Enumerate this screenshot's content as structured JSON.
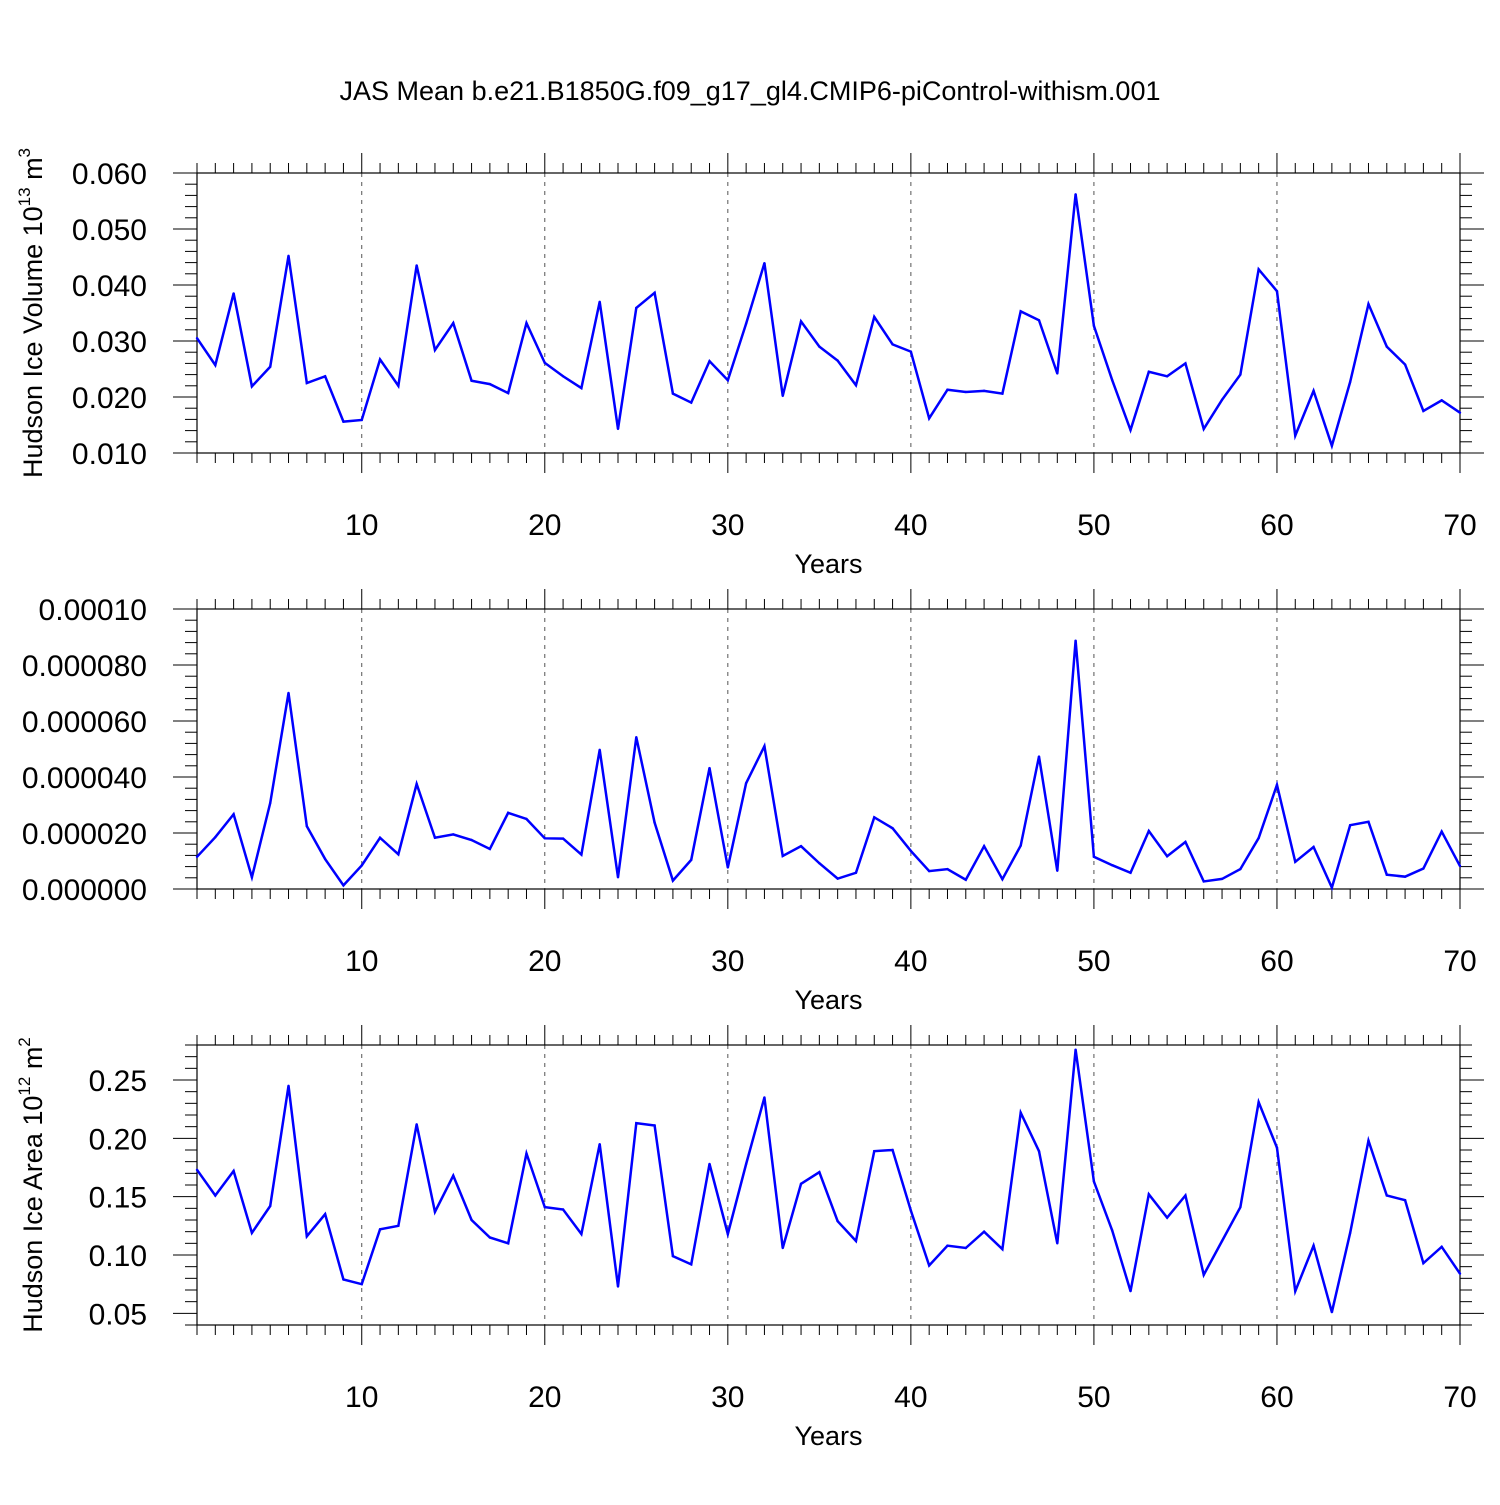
{
  "figure": {
    "title": "JAS Mean b.e21.B1850G.f09_g17_gl4.CMIP6-piControl-withism.001"
  },
  "chart_data": [
    {
      "type": "line",
      "xlabel": "Years",
      "ylabel": "Hudson Ice Volume 10",
      "ylabel_exponent": "13",
      "ylabel_unit": " m",
      "ylabel_unit_exponent": "3",
      "xlim": [
        1,
        70
      ],
      "ylim": [
        0.01,
        0.06
      ],
      "xticks": [
        10,
        20,
        30,
        40,
        50,
        60,
        70
      ],
      "xtick_labels": [
        "10",
        "20",
        "30",
        "40",
        "50",
        "60",
        "70"
      ],
      "yticks": [
        0.01,
        0.02,
        0.03,
        0.04,
        0.05,
        0.06
      ],
      "ytick_labels": [
        "0.010",
        "0.020",
        "0.030",
        "0.040",
        "0.050",
        "0.060"
      ],
      "grid": "vertical dashed at major x ticks",
      "line_color": "#0000ff",
      "x": [
        1,
        2,
        3,
        4,
        5,
        6,
        7,
        8,
        9,
        10,
        11,
        12,
        13,
        14,
        15,
        16,
        17,
        18,
        19,
        20,
        21,
        22,
        23,
        24,
        25,
        26,
        27,
        28,
        29,
        30,
        31,
        32,
        33,
        34,
        35,
        36,
        37,
        38,
        39,
        40,
        41,
        42,
        43,
        44,
        45,
        46,
        47,
        48,
        49,
        50,
        51,
        52,
        53,
        54,
        55,
        56,
        57,
        58,
        59,
        60,
        61,
        62,
        63,
        64,
        65,
        66,
        67,
        68,
        69,
        70
      ],
      "values": [
        0.0305,
        0.0257,
        0.0385,
        0.0219,
        0.0254,
        0.0452,
        0.0225,
        0.0237,
        0.0156,
        0.0159,
        0.0267,
        0.022,
        0.0435,
        0.0284,
        0.0332,
        0.0229,
        0.0223,
        0.0207,
        0.0332,
        0.0261,
        0.0237,
        0.0216,
        0.037,
        0.0143,
        0.0359,
        0.0386,
        0.0206,
        0.019,
        0.0264,
        0.023,
        0.0331,
        0.0439,
        0.0202,
        0.0335,
        0.029,
        0.0265,
        0.0221,
        0.0343,
        0.0294,
        0.0281,
        0.0162,
        0.0213,
        0.0209,
        0.0211,
        0.0206,
        0.0353,
        0.0337,
        0.0242,
        0.0562,
        0.0327,
        0.023,
        0.0141,
        0.0245,
        0.0237,
        0.026,
        0.0143,
        0.0195,
        0.024,
        0.0428,
        0.0389,
        0.0131,
        0.0211,
        0.0113,
        0.0227,
        0.0366,
        0.029,
        0.0258,
        0.0175,
        0.0194,
        0.0172
      ]
    },
    {
      "type": "line",
      "xlabel": "Years",
      "ylabel": "",
      "xlim": [
        1,
        70
      ],
      "ylim": [
        0,
        0.0001
      ],
      "xticks": [
        10,
        20,
        30,
        40,
        50,
        60,
        70
      ],
      "xtick_labels": [
        "10",
        "20",
        "30",
        "40",
        "50",
        "60",
        "70"
      ],
      "yticks": [
        0,
        2e-05,
        4e-05,
        6e-05,
        8e-05,
        0.0001
      ],
      "ytick_labels": [
        "0.000000",
        "0.000020",
        "0.000040",
        "0.000060",
        "0.000080",
        "0.00010"
      ],
      "grid": "vertical dashed at major x ticks",
      "line_color": "#0000ff",
      "x": [
        1,
        2,
        3,
        4,
        5,
        6,
        7,
        8,
        9,
        10,
        11,
        12,
        13,
        14,
        15,
        16,
        17,
        18,
        19,
        20,
        21,
        22,
        23,
        24,
        25,
        26,
        27,
        28,
        29,
        30,
        31,
        32,
        33,
        34,
        35,
        36,
        37,
        38,
        39,
        40,
        41,
        42,
        43,
        44,
        45,
        46,
        47,
        48,
        49,
        50,
        51,
        52,
        53,
        54,
        55,
        56,
        57,
        58,
        59,
        60,
        61,
        62,
        63,
        64,
        65,
        66,
        67,
        68,
        69,
        70
      ],
      "values": [
        1.15e-05,
        1.85e-05,
        2.67e-05,
        4.2e-06,
        3.07e-05,
        7e-05,
        2.24e-05,
        1.07e-05,
        1.3e-06,
        8.4e-06,
        1.83e-05,
        1.24e-05,
        3.75e-05,
        1.83e-05,
        1.95e-05,
        1.75e-05,
        1.43e-05,
        2.72e-05,
        2.5e-05,
        1.81e-05,
        1.8e-05,
        1.23e-05,
        4.97e-05,
        4.2e-06,
        5.42e-05,
        2.37e-05,
        3e-06,
        1.04e-05,
        4.32e-05,
        7.7e-06,
        3.78e-05,
        5.1e-05,
        1.18e-05,
        1.53e-05,
        9.2e-06,
        3.7e-06,
        5.8e-06,
        2.56e-05,
        2.17e-05,
        1.36e-05,
        6.4e-06,
        7.1e-06,
        3.3e-06,
        1.53e-05,
        3.5e-06,
        1.55e-05,
        4.73e-05,
        6.5e-06,
        8.87e-05,
        1.15e-05,
        8.5e-06,
        5.8e-06,
        2.07e-05,
        1.17e-05,
        1.68e-05,
        2.7e-06,
        3.6e-06,
        7.1e-06,
        1.82e-05,
        3.72e-05,
        9.7e-06,
        1.5e-05,
        5e-07,
        2.28e-05,
        2.4e-05,
        5.1e-06,
        4.4e-06,
        7.3e-06,
        2.05e-05,
        8.2e-06
      ]
    },
    {
      "type": "line",
      "xlabel": "Years",
      "ylabel": "Hudson Ice Area 10",
      "ylabel_exponent": "12",
      "ylabel_unit": " m",
      "ylabel_unit_exponent": "2",
      "xlim": [
        1,
        70
      ],
      "ylim": [
        0.04,
        0.28
      ],
      "xticks": [
        10,
        20,
        30,
        40,
        50,
        60,
        70
      ],
      "xtick_labels": [
        "10",
        "20",
        "30",
        "40",
        "50",
        "60",
        "70"
      ],
      "yticks": [
        0.05,
        0.1,
        0.15,
        0.2,
        0.25
      ],
      "ytick_labels": [
        "0.05",
        "0.10",
        "0.15",
        "0.20",
        "0.25"
      ],
      "grid": "vertical dashed at major x ticks",
      "line_color": "#0000ff",
      "x": [
        1,
        2,
        3,
        4,
        5,
        6,
        7,
        8,
        9,
        10,
        11,
        12,
        13,
        14,
        15,
        16,
        17,
        18,
        19,
        20,
        21,
        22,
        23,
        24,
        25,
        26,
        27,
        28,
        29,
        30,
        31,
        32,
        33,
        34,
        35,
        36,
        37,
        38,
        39,
        40,
        41,
        42,
        43,
        44,
        45,
        46,
        47,
        48,
        49,
        50,
        51,
        52,
        53,
        54,
        55,
        56,
        57,
        58,
        59,
        60,
        61,
        62,
        63,
        64,
        65,
        66,
        67,
        68,
        69,
        70
      ],
      "values": [
        0.173,
        0.151,
        0.172,
        0.119,
        0.142,
        0.245,
        0.116,
        0.135,
        0.079,
        0.075,
        0.122,
        0.125,
        0.212,
        0.137,
        0.168,
        0.13,
        0.115,
        0.11,
        0.187,
        0.141,
        0.139,
        0.118,
        0.195,
        0.073,
        0.213,
        0.211,
        0.099,
        0.092,
        0.178,
        0.118,
        0.178,
        0.235,
        0.106,
        0.161,
        0.171,
        0.129,
        0.112,
        0.189,
        0.19,
        0.138,
        0.091,
        0.108,
        0.106,
        0.12,
        0.105,
        0.222,
        0.189,
        0.11,
        0.276,
        0.163,
        0.121,
        0.069,
        0.152,
        0.132,
        0.151,
        0.083,
        0.112,
        0.141,
        0.231,
        0.192,
        0.069,
        0.108,
        0.051,
        0.119,
        0.198,
        0.151,
        0.147,
        0.093,
        0.107,
        0.084
      ]
    }
  ]
}
